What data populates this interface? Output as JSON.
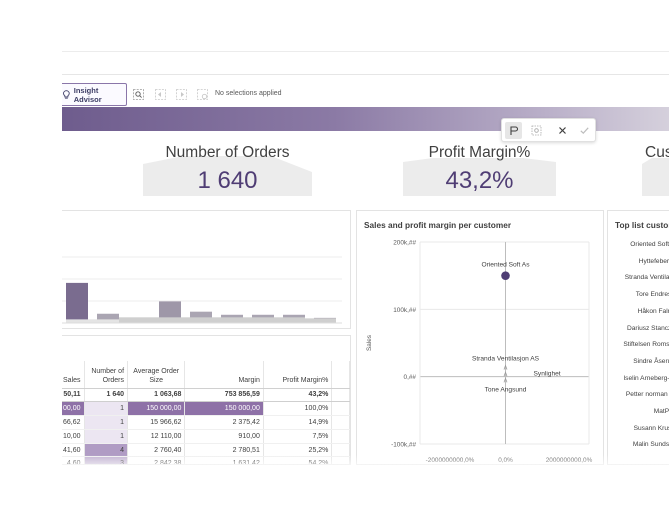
{
  "toolbar": {
    "insight_advisor_label": "Insight Advisor",
    "no_selections_text": "No selections applied"
  },
  "kpis": [
    {
      "title": "Number of Orders",
      "value": "1 640"
    },
    {
      "title": "Profit Margin%",
      "value": "43,2%"
    },
    {
      "title": "Cus"
    }
  ],
  "bar_chart": {
    "values": [
      39,
      9,
      4,
      21,
      11,
      8,
      8,
      8,
      5
    ],
    "secondary": [
      4,
      4,
      6,
      6,
      6,
      6,
      6,
      6,
      5
    ],
    "ylim": [
      0,
      70
    ]
  },
  "table": {
    "headers": [
      "Sales",
      "Number of Orders",
      "Average Order Size",
      "Margin",
      "Profit Margin%"
    ],
    "totals": [
      "50,11",
      "1 640",
      "1 063,68",
      "753 856,59",
      "43,2%"
    ],
    "rows": [
      [
        "00,00",
        "1",
        "150 000,00",
        "150 000,00",
        "100,0%"
      ],
      [
        "66,62",
        "1",
        "15 966,62",
        "2 375,42",
        "14,9%"
      ],
      [
        "10,00",
        "1",
        "12 110,00",
        "910,00",
        "7,5%"
      ],
      [
        "41,60",
        "4",
        "2 760,40",
        "2 780,51",
        "25,2%"
      ],
      [
        "4,60",
        "3",
        "2 842,38",
        "1 631,42",
        "54,2%"
      ]
    ]
  },
  "scatter": {
    "title": "Sales and profit margin per customer",
    "ylabel": "Sales",
    "y_ticks": [
      "200k,##",
      "100k,##",
      "0,##",
      "-100k,##"
    ],
    "x_ticks": [
      "-2000000000,0%",
      "0,0%",
      "2000000000,0%"
    ],
    "chart_data": {
      "type": "scatter",
      "ylim": [
        -100000,
        200000
      ],
      "points": [
        {
          "label": "Oriented Soft As",
          "x": 0,
          "y": 150000
        },
        {
          "label": "Stranda Ventilasjon AS",
          "x": 0,
          "y": 15000
        },
        {
          "label": "Synlighet",
          "x": 0,
          "y": 5000
        },
        {
          "label": "Tone Angsund",
          "x": 0,
          "y": -4000
        }
      ]
    }
  },
  "top_list": {
    "title": "Top list custom",
    "items": [
      "Oriented Soft A",
      "Hyttefeber A",
      "Stranda Ventila...",
      "Tore Endrese",
      "Håkon Falne",
      "Dariusz Stanczu",
      "Stiftelsen Roms...",
      "Sindre Åserud",
      "Iselin Arneberg-...",
      "Petter norman ...",
      "MatPra",
      "Susann Kruse",
      "Malin Sundstø"
    ]
  },
  "colors": {
    "accent": "#4f3d74",
    "selected": "#8e71a7",
    "bar_dark": "#7a6c8f",
    "bar_mid": "#aaa5b2"
  }
}
